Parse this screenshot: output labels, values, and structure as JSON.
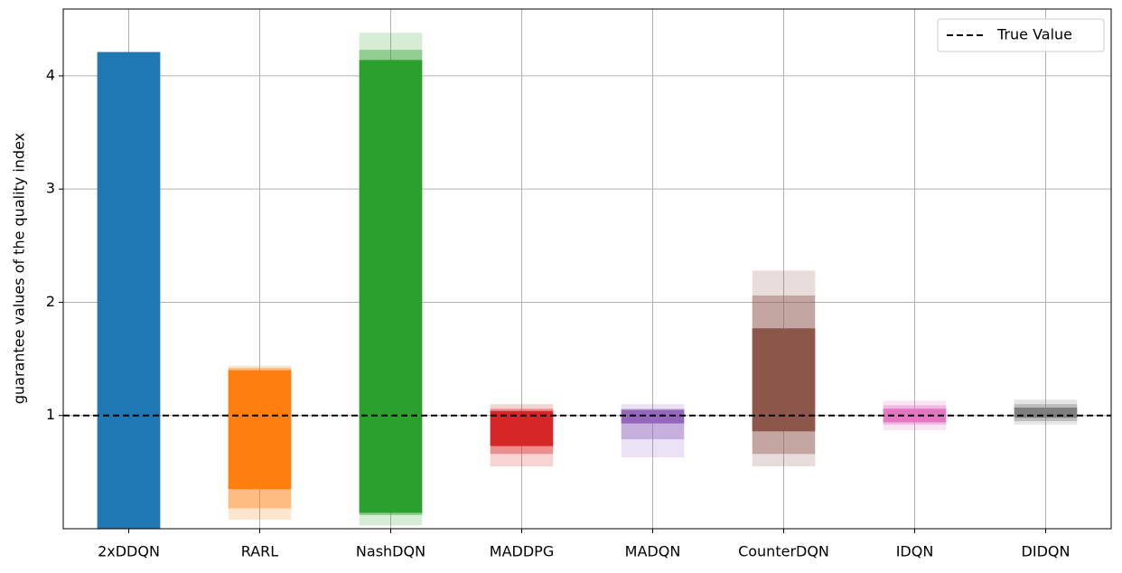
{
  "chart_data": {
    "type": "range_bar",
    "y_label": "guarantee values of the quality index",
    "categories": [
      "2xDDQN",
      "RARL",
      "NashDQN",
      "MADDPG",
      "MADQN",
      "CounterDQN",
      "IDQN",
      "DIDQN"
    ],
    "intervals": [
      {
        "color": "#1f77b4",
        "ranges": [
          [
            0,
            4.21
          ],
          [
            0,
            4.21
          ],
          [
            0,
            4.21
          ]
        ]
      },
      {
        "color": "#ff7f0e",
        "ranges": [
          [
            0.08,
            1.44
          ],
          [
            0.18,
            1.42
          ],
          [
            0.35,
            1.4
          ]
        ]
      },
      {
        "color": "#2ca02c",
        "ranges": [
          [
            0.03,
            4.38
          ],
          [
            0.12,
            4.23
          ],
          [
            0.14,
            4.14
          ]
        ]
      },
      {
        "color": "#d62728",
        "ranges": [
          [
            0.55,
            1.1
          ],
          [
            0.66,
            1.06
          ],
          [
            0.73,
            1.04
          ]
        ]
      },
      {
        "color": "#9467bd",
        "ranges": [
          [
            0.63,
            1.1
          ],
          [
            0.79,
            1.06
          ],
          [
            0.93,
            1.05
          ]
        ]
      },
      {
        "color": "#8c564b",
        "ranges": [
          [
            0.55,
            2.28
          ],
          [
            0.66,
            2.06
          ],
          [
            0.86,
            1.77
          ]
        ]
      },
      {
        "color": "#e377c2",
        "ranges": [
          [
            0.87,
            1.13
          ],
          [
            0.92,
            1.09
          ],
          [
            0.94,
            1.06
          ]
        ]
      },
      {
        "color": "#7f7f7f",
        "ranges": [
          [
            0.92,
            1.14
          ],
          [
            0.95,
            1.1
          ],
          [
            0.98,
            1.07
          ]
        ]
      }
    ],
    "alphas": [
      0.2,
      0.4,
      1
    ],
    "reference_line": {
      "name": "True Value",
      "value": 1,
      "color": "#000000"
    },
    "ylim": [
      0,
      4.59
    ],
    "yticks": [
      1,
      2,
      3,
      4
    ],
    "grid": true,
    "legend": "upper right"
  }
}
